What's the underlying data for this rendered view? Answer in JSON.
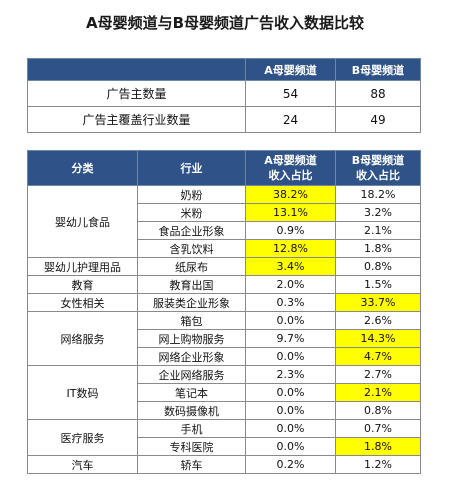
{
  "title": "A母婴频道与B母婴频道广告收入数据比较",
  "table1": {
    "header": [
      "",
      "A母婴频道",
      "B母婴频道"
    ],
    "rows": [
      [
        "广告主数量",
        "54",
        "88"
      ],
      [
        "广告主覆盖行业数量",
        "24",
        "49"
      ]
    ]
  },
  "table2": {
    "header": [
      [
        "分类"
      ],
      [
        "行业"
      ],
      [
        "A母婴频道",
        "收入占比"
      ],
      [
        "B母婴频道",
        "收入占比"
      ]
    ],
    "highlight_color": "#ffff00",
    "groups": [
      {
        "name": "婴幼儿食品",
        "rows": [
          {
            "industry": "奶粉",
            "a": "38.2%",
            "b": "18.2%",
            "highlight": [
              "a"
            ]
          },
          {
            "industry": "米粉",
            "a": "13.1%",
            "b": "3.2%",
            "highlight": [
              "a"
            ]
          },
          {
            "industry": "食品企业形象",
            "a": "0.9%",
            "b": "2.1%",
            "highlight": []
          },
          {
            "industry": "含乳饮料",
            "a": "12.8%",
            "b": "1.8%",
            "highlight": [
              "a"
            ]
          }
        ]
      },
      {
        "name": "婴幼儿护理用品",
        "rows": [
          {
            "industry": "纸尿布",
            "a": "3.4%",
            "b": "0.8%",
            "highlight": [
              "a"
            ]
          }
        ]
      },
      {
        "name": "教育",
        "rows": [
          {
            "industry": "教育出国",
            "a": "2.0%",
            "b": "1.5%",
            "highlight": []
          }
        ]
      },
      {
        "name": "女性相关",
        "rows": [
          {
            "industry": "服装类企业形象",
            "a": "0.3%",
            "b": "33.7%",
            "highlight": [
              "b"
            ]
          }
        ]
      },
      {
        "name": "网络服务",
        "rows": [
          {
            "industry": "箱包",
            "a": "0.0%",
            "b": "2.6%",
            "highlight": []
          },
          {
            "industry": "网上购物服务",
            "a": "9.7%",
            "b": "14.3%",
            "highlight": [
              "b"
            ]
          },
          {
            "industry": "网络企业形象",
            "a": "0.0%",
            "b": "4.7%",
            "highlight": [
              "b"
            ]
          }
        ]
      },
      {
        "name": "IT数码",
        "rows": [
          {
            "industry": "企业网络服务",
            "a": "2.3%",
            "b": "2.7%",
            "highlight": []
          },
          {
            "industry": "笔记本",
            "a": "0.0%",
            "b": "2.1%",
            "highlight": [
              "b"
            ]
          },
          {
            "industry": "数码摄像机",
            "a": "0.0%",
            "b": "0.8%",
            "highlight": []
          }
        ]
      },
      {
        "name": "医疗服务",
        "rows": [
          {
            "industry": "手机",
            "a": "0.0%",
            "b": "0.7%",
            "highlight": []
          },
          {
            "industry": "专科医院",
            "a": "0.0%",
            "b": "1.8%",
            "highlight": [
              "b"
            ]
          }
        ]
      },
      {
        "name": "汽车",
        "rows": [
          {
            "industry": "轿车",
            "a": "0.2%",
            "b": "1.2%",
            "highlight": []
          }
        ]
      }
    ]
  }
}
